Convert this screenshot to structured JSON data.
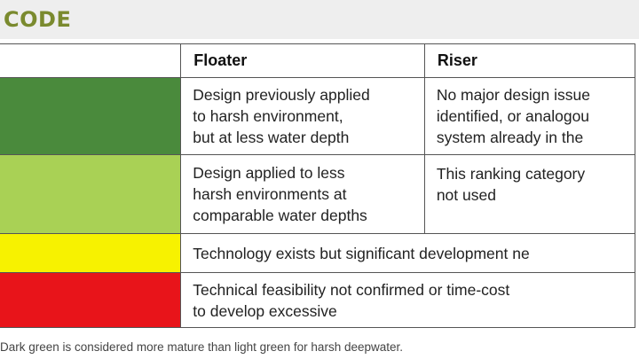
{
  "header": {
    "title": "CODE"
  },
  "table": {
    "columns": [
      "",
      "Floater",
      "Riser"
    ],
    "rows": [
      {
        "color": "#4a8a3c",
        "name": "dark-green",
        "floater": [
          "Design previously applied",
          "to harsh environment,",
          "but at less water depth"
        ],
        "riser": [
          "No major design issue",
          "identified, or analogou",
          "system already in the"
        ]
      },
      {
        "color": "#a9d155",
        "name": "light-green",
        "floater": [
          "Design applied to less",
          "harsh environments at",
          "comparable water depths"
        ],
        "riser": [
          "This ranking category",
          "not used"
        ]
      },
      {
        "color": "#f7f200",
        "name": "yellow",
        "merged": [
          "Technology exists but significant development ne"
        ]
      },
      {
        "color": "#e8141a",
        "name": "red",
        "merged": [
          "Technical feasibility not confirmed or time-cost",
          "to develop excessive"
        ]
      }
    ]
  },
  "footnote": "Dark green is considered more mature than light green for harsh deepwater."
}
